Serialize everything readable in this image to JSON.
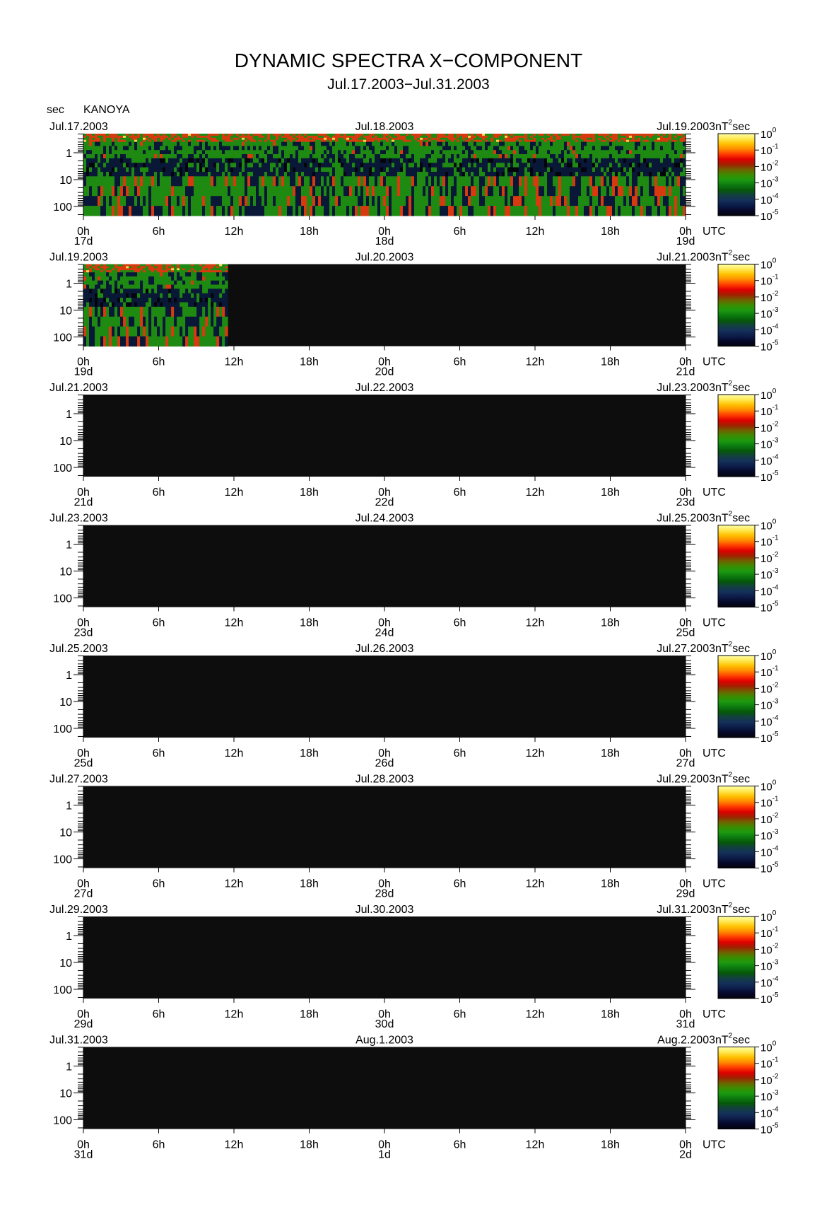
{
  "title": "DYNAMIC SPECTRA X−COMPONENT",
  "subtitle": "Jul.17.2003−Jul.31.2003",
  "y_unit_label": "sec",
  "station": "KANOYA",
  "colorbar": {
    "unit_prefix": "nT",
    "unit_sup": "2",
    "unit_suffix": "sec",
    "tick_base": "10",
    "tick_exponents": [
      "0",
      "-1",
      "-2",
      "-3",
      "-4",
      "-5"
    ],
    "colors": [
      "#ffffa8",
      "#ffe850",
      "#ffc000",
      "#ff8a00",
      "#ff3c00",
      "#e00000",
      "#a02000",
      "#706000",
      "#3c8c00",
      "#1c9a10",
      "#0c7a10",
      "#065808",
      "#124040",
      "#14305a",
      "#0c1c48",
      "#06082a",
      "#04040c"
    ]
  },
  "time_axis": {
    "tick_labels": [
      "0h",
      "6h",
      "12h",
      "18h",
      "0h",
      "6h",
      "12h",
      "18h",
      "0h"
    ],
    "utc_label": "UTC"
  },
  "panel_colors": {
    "background": "#0d0d0d",
    "green": "#1e8a12",
    "red": "#d83a10",
    "dark": "#0a1838",
    "yellow": "#ffd84a"
  },
  "chart_data": {
    "type": "heatmap",
    "y_axis": {
      "label": "sec",
      "scale": "log",
      "tick_labels": [
        "1",
        "10",
        "100"
      ],
      "reversed": true
    },
    "z_axis": {
      "scale": "log",
      "range": [
        1e-05,
        1
      ],
      "unit": "nT²sec"
    },
    "panels": [
      {
        "left_date": "Jul.17.2003",
        "center_date": "Jul.18.2003",
        "right_date": "Jul.19.2003",
        "day_labels": [
          "17d",
          "18d",
          "19d"
        ],
        "data_coverage_hours": [
          0,
          48
        ]
      },
      {
        "left_date": "Jul.19.2003",
        "center_date": "Jul.20.2003",
        "right_date": "Jul.21.2003",
        "day_labels": [
          "19d",
          "20d",
          "21d"
        ],
        "data_coverage_hours": [
          0,
          11.5
        ]
      },
      {
        "left_date": "Jul.21.2003",
        "center_date": "Jul.22.2003",
        "right_date": "Jul.23.2003",
        "day_labels": [
          "21d",
          "22d",
          "23d"
        ],
        "data_coverage_hours": [
          0,
          0
        ]
      },
      {
        "left_date": "Jul.23.2003",
        "center_date": "Jul.24.2003",
        "right_date": "Jul.25.2003",
        "day_labels": [
          "23d",
          "24d",
          "25d"
        ],
        "data_coverage_hours": [
          0,
          0
        ]
      },
      {
        "left_date": "Jul.25.2003",
        "center_date": "Jul.26.2003",
        "right_date": "Jul.27.2003",
        "day_labels": [
          "25d",
          "26d",
          "27d"
        ],
        "data_coverage_hours": [
          0,
          0
        ]
      },
      {
        "left_date": "Jul.27.2003",
        "center_date": "Jul.28.2003",
        "right_date": "Jul.29.2003",
        "day_labels": [
          "27d",
          "28d",
          "29d"
        ],
        "data_coverage_hours": [
          0,
          0
        ]
      },
      {
        "left_date": "Jul.29.2003",
        "center_date": "Jul.30.2003",
        "right_date": "Jul.31.2003",
        "day_labels": [
          "29d",
          "30d",
          "31d"
        ],
        "data_coverage_hours": [
          0,
          0
        ]
      },
      {
        "left_date": "Jul.31.2003",
        "center_date": "Aug.1.2003",
        "right_date": "Aug.2.2003",
        "day_labels": [
          "31d",
          "1d",
          "2d"
        ],
        "data_coverage_hours": [
          0,
          0
        ]
      }
    ]
  }
}
